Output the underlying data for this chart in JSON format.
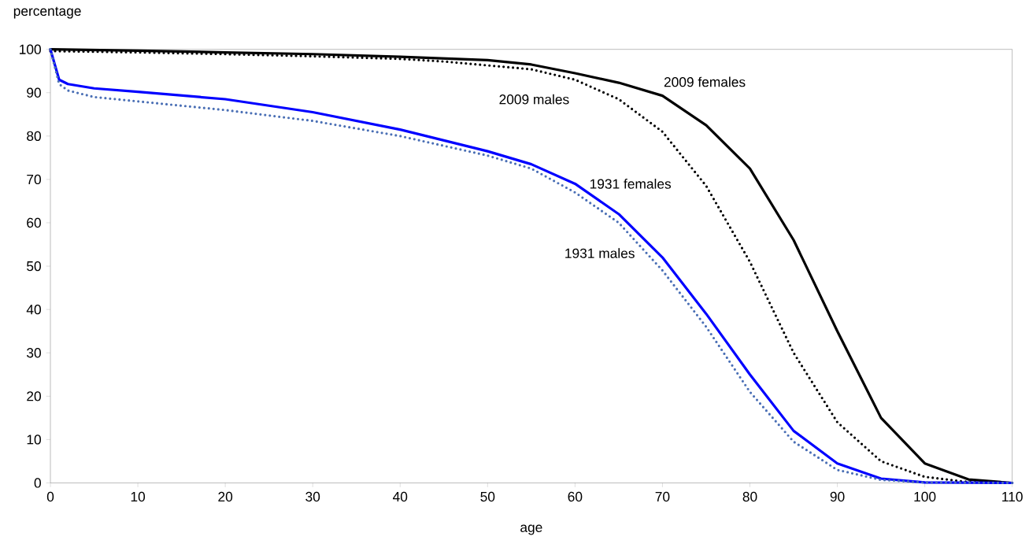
{
  "chart_data": {
    "type": "line",
    "xlabel": "age",
    "ylabel": "percentage",
    "xlim": [
      0,
      110
    ],
    "ylim": [
      0,
      100
    ],
    "xticks": [
      0,
      10,
      20,
      30,
      40,
      50,
      60,
      70,
      80,
      90,
      100,
      110
    ],
    "yticks": [
      0,
      10,
      20,
      30,
      40,
      50,
      60,
      70,
      80,
      90,
      100
    ],
    "grid": false,
    "marker": "none",
    "series": [
      {
        "name": "2009 females",
        "color": "#000000",
        "line_style": "solid",
        "x": [
          0,
          10,
          20,
          30,
          40,
          50,
          55,
          60,
          65,
          70,
          75,
          80,
          85,
          90,
          95,
          100,
          105,
          110
        ],
        "values": [
          100,
          99.7,
          99.3,
          98.9,
          98.3,
          97.5,
          96.5,
          94.5,
          92.3,
          89.3,
          82.5,
          72.5,
          56,
          35,
          15,
          4.5,
          0.8,
          0
        ]
      },
      {
        "name": "2009 males",
        "color": "#000000",
        "line_style": "dotted",
        "x": [
          0,
          10,
          20,
          30,
          40,
          45,
          50,
          55,
          60,
          65,
          70,
          75,
          80,
          85,
          90,
          95,
          100,
          105,
          110
        ],
        "values": [
          99.6,
          99.3,
          98.9,
          98.4,
          97.8,
          97.2,
          96.3,
          95.4,
          93,
          88.5,
          81,
          68.5,
          51,
          30,
          14,
          5,
          1.4,
          0.2,
          0
        ]
      },
      {
        "name": "1931 females",
        "color": "#0000ff",
        "line_style": "solid",
        "x": [
          0,
          1,
          2,
          5,
          10,
          20,
          30,
          40,
          50,
          55,
          60,
          65,
          70,
          75,
          80,
          85,
          90,
          95,
          100,
          110
        ],
        "values": [
          100,
          93,
          92,
          91,
          90.2,
          88.5,
          85.5,
          81.5,
          76.5,
          73.5,
          69,
          62,
          52,
          39,
          25,
          12,
          4.5,
          1,
          0.1,
          0
        ]
      },
      {
        "name": "1931 males",
        "color": "#4a6fb5",
        "line_style": "dotted",
        "x": [
          0,
          1,
          2,
          5,
          10,
          20,
          30,
          40,
          50,
          55,
          60,
          65,
          70,
          75,
          80,
          85,
          90,
          95,
          100,
          110
        ],
        "values": [
          100,
          92,
          90.5,
          89,
          88,
          86,
          83.5,
          80,
          75.5,
          72.5,
          67,
          60,
          49,
          36,
          21,
          9.5,
          3,
          0.7,
          0.1,
          0
        ]
      }
    ]
  }
}
